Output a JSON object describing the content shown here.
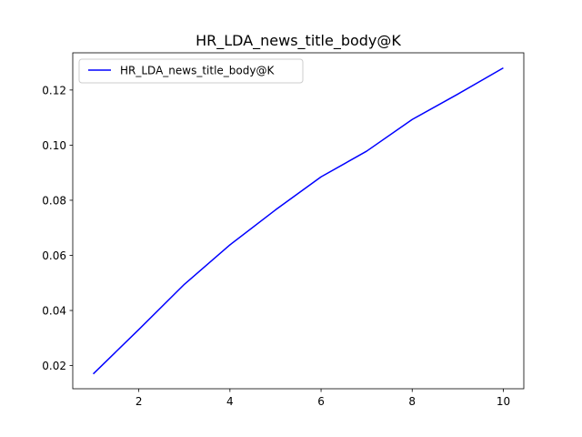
{
  "chart_data": {
    "type": "line",
    "title": "HR_LDA_news_title_body@K",
    "xlabel": "",
    "ylabel": "",
    "xlim": [
      0.55,
      10.45
    ],
    "ylim": [
      0.0116,
      0.1335
    ],
    "xticks": [
      2,
      4,
      6,
      8,
      10
    ],
    "yticks": [
      0.02,
      0.04,
      0.06,
      0.08,
      0.1,
      0.12
    ],
    "xtick_labels": [
      "2",
      "4",
      "6",
      "8",
      "10"
    ],
    "ytick_labels": [
      "0.02",
      "0.04",
      "0.06",
      "0.08",
      "0.10",
      "0.12"
    ],
    "grid": false,
    "legend_position": "upper-left",
    "series": [
      {
        "name": "HR_LDA_news_title_body@K",
        "color": "#0000ff",
        "x": [
          1,
          2,
          3,
          4,
          5,
          6,
          7,
          8,
          9,
          10
        ],
        "values": [
          0.017,
          0.0331,
          0.0495,
          0.0638,
          0.0765,
          0.0885,
          0.0978,
          0.1093,
          0.1185,
          0.128
        ]
      }
    ]
  }
}
